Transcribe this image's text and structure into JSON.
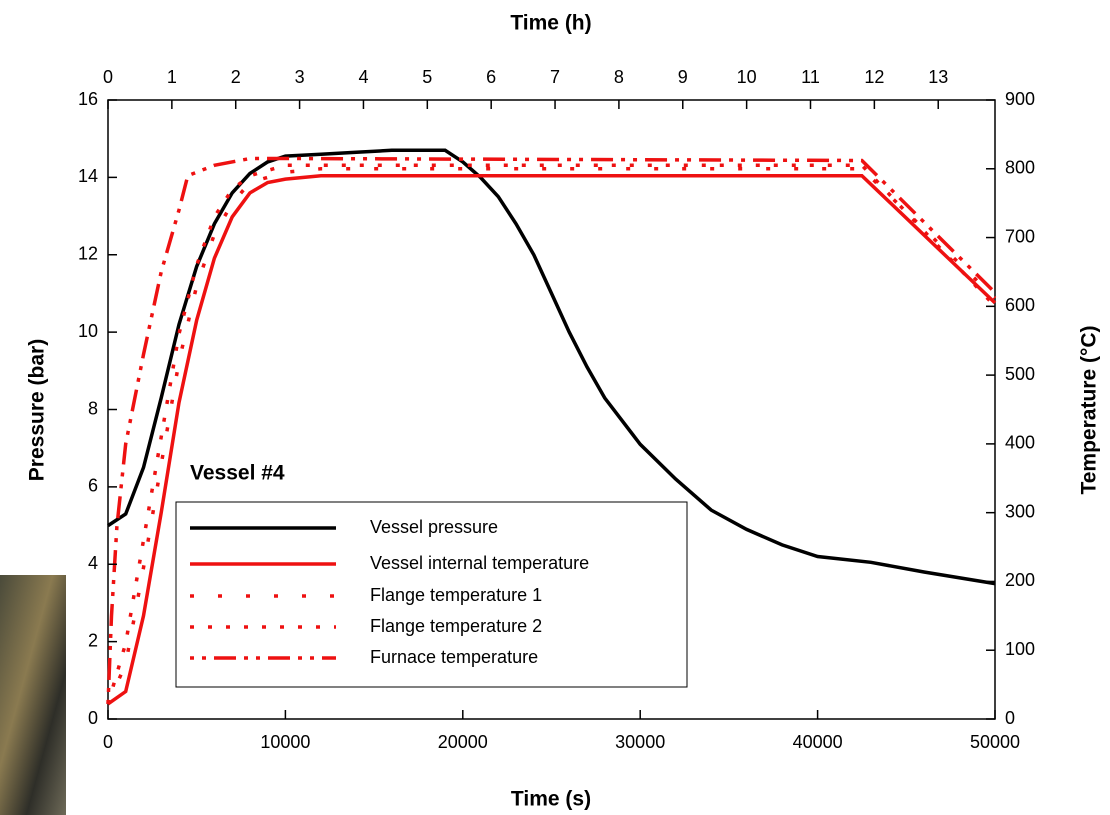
{
  "chart_data": {
    "type": "line",
    "x_label": "Time (s)",
    "x2_label": "Time (h)",
    "y_label": "Pressure (bar)",
    "y2_label": "Temperature (°C)",
    "annotation": "Vessel #4",
    "xlim": [
      0,
      50000
    ],
    "xticks": [
      0,
      10000,
      20000,
      30000,
      40000,
      50000
    ],
    "x2lim": [
      0,
      13.889
    ],
    "x2ticks": [
      0,
      1,
      2,
      3,
      4,
      5,
      6,
      7,
      8,
      9,
      10,
      11,
      12,
      13
    ],
    "ylim": [
      0,
      16
    ],
    "yticks": [
      0,
      2,
      4,
      6,
      8,
      10,
      12,
      14,
      16
    ],
    "y2lim": [
      0,
      900
    ],
    "y2ticks": [
      0,
      100,
      200,
      300,
      400,
      500,
      600,
      700,
      800,
      900
    ],
    "series": [
      {
        "name": "Vessel pressure",
        "color": "#000000",
        "style": "solid",
        "x": [
          0,
          1000,
          2000,
          3000,
          4000,
          5000,
          6000,
          7000,
          8000,
          9000,
          10000,
          12000,
          14000,
          16000,
          19000,
          20000,
          21000,
          22000,
          23000,
          24000,
          25000,
          26000,
          27000,
          28000,
          30000,
          32000,
          34000,
          36000,
          38000,
          40000,
          43000,
          46000,
          50000
        ],
        "values": [
          5.0,
          5.3,
          6.5,
          8.3,
          10.2,
          11.7,
          12.8,
          13.6,
          14.1,
          14.4,
          14.55,
          14.6,
          14.65,
          14.7,
          14.7,
          14.4,
          14.0,
          13.5,
          12.8,
          12.0,
          11.0,
          10.0,
          9.1,
          8.3,
          7.1,
          6.2,
          5.4,
          4.9,
          4.5,
          4.2,
          4.05,
          3.8,
          3.5
        ]
      },
      {
        "name": "Vessel internal temperature",
        "color": "#ee1111",
        "style": "solid",
        "axis": "y2",
        "x": [
          0,
          1000,
          2000,
          3000,
          4000,
          5000,
          6000,
          7000,
          8000,
          9000,
          10000,
          12000,
          42500,
          50000
        ],
        "values": [
          22,
          40,
          150,
          300,
          460,
          580,
          670,
          730,
          765,
          780,
          785,
          790,
          790,
          605
        ]
      },
      {
        "name": "Flange temperature 1",
        "color": "#ee1111",
        "style": "dotted",
        "axis": "y2",
        "x": [
          0,
          1000,
          2000,
          3000,
          4000,
          5000,
          6000,
          7000,
          8000,
          10000,
          12000,
          42500,
          50000
        ],
        "values": [
          22,
          80,
          220,
          370,
          520,
          630,
          705,
          750,
          780,
          795,
          800,
          800,
          612
        ]
      },
      {
        "name": "Flange temperature 2",
        "color": "#ee1111",
        "style": "dense",
        "axis": "y2",
        "x": [
          0,
          1000,
          2000,
          3000,
          4000,
          5000,
          6000,
          7000,
          8000,
          10000,
          12000,
          42500,
          50000
        ],
        "values": [
          22,
          110,
          260,
          410,
          560,
          660,
          730,
          770,
          790,
          805,
          805,
          805,
          600
        ]
      },
      {
        "name": "Furnace temperature",
        "color": "#ee1111",
        "style": "dashdot",
        "axis": "y2",
        "x": [
          0,
          200,
          500,
          1000,
          2000,
          3000,
          4000,
          4500,
          6000,
          8000,
          10000,
          42500,
          50000
        ],
        "values": [
          22,
          150,
          280,
          400,
          530,
          650,
          740,
          790,
          805,
          815,
          815,
          812,
          620
        ]
      }
    ]
  }
}
